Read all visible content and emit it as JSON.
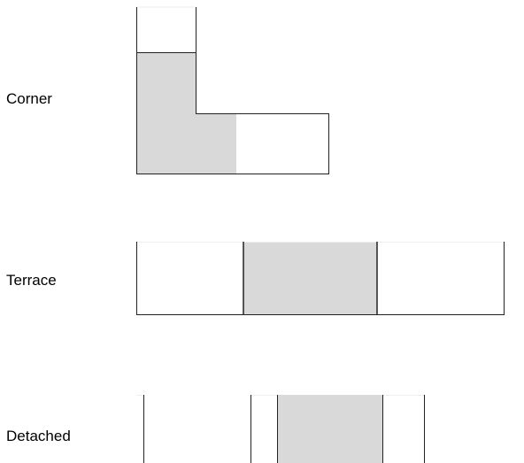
{
  "labels": {
    "corner": "Corner",
    "terrace": "Terrace",
    "detached": "Detached"
  },
  "colors": {
    "shaded": "#d9d9d9",
    "stroke": "#222222",
    "faint": "#eeeeee",
    "background": "#ffffff"
  }
}
